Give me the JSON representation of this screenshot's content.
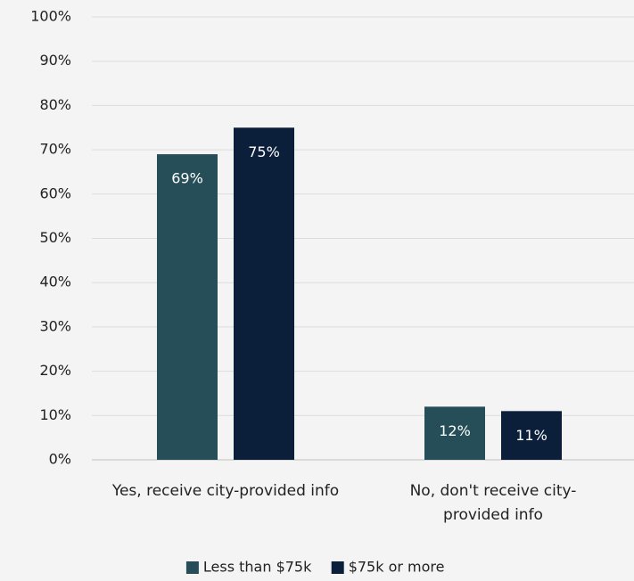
{
  "chart_data": {
    "type": "bar",
    "categories": [
      "Yes, receive city-provided info",
      "No, don't receive city-provided info"
    ],
    "series": [
      {
        "name": "Less than $75k",
        "color": "#254e58",
        "values": [
          69,
          12
        ],
        "value_labels": [
          "69%",
          "12%"
        ]
      },
      {
        "name": "$75k or more",
        "color": "#0b1f3a",
        "values": [
          75,
          11
        ],
        "value_labels": [
          "75%",
          "11%"
        ]
      }
    ],
    "ylim": [
      0,
      100
    ],
    "yticks": [
      {
        "value": 0,
        "label": "0%"
      },
      {
        "value": 10,
        "label": "10%"
      },
      {
        "value": 20,
        "label": "20%"
      },
      {
        "value": 30,
        "label": "30%"
      },
      {
        "value": 40,
        "label": "40%"
      },
      {
        "value": 50,
        "label": "50%"
      },
      {
        "value": 60,
        "label": "60%"
      },
      {
        "value": 70,
        "label": "70%"
      },
      {
        "value": 80,
        "label": "80%"
      },
      {
        "value": 90,
        "label": "90%"
      },
      {
        "value": 100,
        "label": "100%"
      }
    ],
    "grid": true,
    "legend": "bottom"
  }
}
